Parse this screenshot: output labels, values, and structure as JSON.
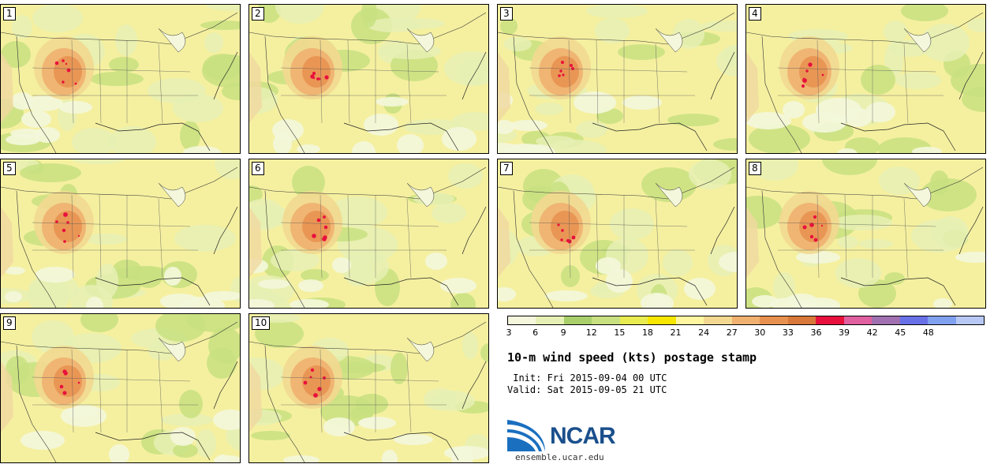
{
  "panels": [
    {
      "label": "1"
    },
    {
      "label": "2"
    },
    {
      "label": "3"
    },
    {
      "label": "4"
    },
    {
      "label": "5"
    },
    {
      "label": "6"
    },
    {
      "label": "7"
    },
    {
      "label": "8"
    },
    {
      "label": "9"
    },
    {
      "label": "10"
    }
  ],
  "colorbar": {
    "ticks": [
      "3",
      "6",
      "9",
      "12",
      "15",
      "18",
      "21",
      "24",
      "27",
      "30",
      "33",
      "36",
      "39",
      "42",
      "45",
      "48"
    ],
    "colors": [
      "#f4f7dc",
      "#e6f0b4",
      "#a8cf6a",
      "#c8e080",
      "#e8ec50",
      "#f6e600",
      "#fff7a0",
      "#f2d890",
      "#f0b070",
      "#e89050",
      "#d8783a",
      "#e8103c",
      "#e060a0",
      "#a070b0",
      "#6870e8",
      "#80a0f0",
      "#b8c8f4"
    ]
  },
  "title": "10-m wind speed (kts) postage stamp",
  "init": " Init: Fri 2015-09-04 00 UTC",
  "valid": "Valid: Sat 2015-09-05 21 UTC",
  "logo": {
    "text": "NCAR",
    "site": "ensemble.ucar.edu"
  }
}
